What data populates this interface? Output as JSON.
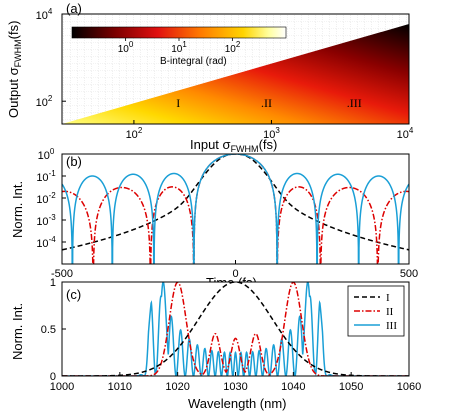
{
  "colors": {
    "series_I": "#000000",
    "series_II": "#dd0000",
    "series_III": "#1a9fd6",
    "colormap": [
      "#000000",
      "#7a0000",
      "#e01010",
      "#ff7a00",
      "#ffd400",
      "#ffffa0",
      "#ffffff"
    ]
  },
  "chart_data": [
    {
      "panel": "(a)",
      "type": "heatmap",
      "xlabel_main": "Input σ",
      "xlabel_sub": "FWHM",
      "xlabel_unit": "(fs)",
      "ylabel_main": "Output σ",
      "ylabel_sub": "FWHM",
      "ylabel_unit": "(fs)",
      "xscale": "log",
      "yscale": "log",
      "xlim": [
        30,
        10000
      ],
      "ylim": [
        30,
        10000
      ],
      "x_ticks": [
        {
          "base": "10",
          "exp": "2"
        },
        {
          "base": "10",
          "exp": "3"
        },
        {
          "base": "10",
          "exp": "4"
        }
      ],
      "y_ticks": [
        {
          "base": "10",
          "exp": "2"
        },
        {
          "base": "10",
          "exp": "4"
        }
      ],
      "colorbar": {
        "label": "B-integral (rad)",
        "scale": "log",
        "range": [
          0.1,
          1000
        ],
        "ticks": [
          {
            "base": "10",
            "exp": "0"
          },
          {
            "base": "10",
            "exp": "1"
          },
          {
            "base": "10",
            "exp": "2"
          }
        ],
        "location": "top-left inside"
      },
      "annotations": [
        {
          "text": "I",
          "x": 210,
          "y": 90
        },
        {
          "text": ".II",
          "x": 920,
          "y": 90
        },
        {
          "text": ".III",
          "x": 4000,
          "y": 90
        }
      ],
      "grid": true
    },
    {
      "panel": "(b)",
      "type": "line",
      "xlabel": "Time (fs)",
      "ylabel": "Norm. Int.",
      "yscale": "log",
      "xlim": [
        -500,
        500
      ],
      "ylim": [
        1e-05,
        1
      ],
      "x_ticks": [
        "-500",
        "0",
        "500"
      ],
      "y_ticks": [
        {
          "base": "10",
          "exp": "0"
        },
        {
          "base": "10",
          "exp": "-1"
        },
        {
          "base": "10",
          "exp": "-2"
        },
        {
          "base": "10",
          "exp": "-3"
        },
        {
          "base": "10",
          "exp": "-4"
        }
      ],
      "series": [
        {
          "name": "I",
          "style": "dashed",
          "fwhm_fs": 100
        },
        {
          "name": "II",
          "style": "dashdot",
          "nulls_fs": [
            120,
            245,
            410
          ]
        },
        {
          "name": "III",
          "style": "solid",
          "nulls_fs": [
            120,
            235,
            355,
            470
          ]
        }
      ]
    },
    {
      "panel": "(c)",
      "type": "line",
      "xlabel": "Wavelength (nm)",
      "ylabel": "Norm. Int.",
      "xlim": [
        1000,
        1060
      ],
      "ylim": [
        0,
        1
      ],
      "x_ticks": [
        "1000",
        "1010",
        "1020",
        "1030",
        "1040",
        "1050",
        "1060"
      ],
      "y_ticks": [
        "0",
        "0.5",
        "1"
      ],
      "legend": {
        "location": "top-right",
        "entries": [
          "I",
          "II",
          "III"
        ]
      },
      "series": [
        {
          "name": "I",
          "style": "dashed",
          "center_nm": 1030,
          "fwhm_nm": 15
        },
        {
          "name": "II",
          "style": "dashdot",
          "peaks_nm": [
            1020,
            1026.5,
            1030,
            1033.5,
            1040
          ],
          "peak_values": [
            1.0,
            0.45,
            0.4,
            0.45,
            1.0
          ]
        },
        {
          "name": "III",
          "style": "solid",
          "peaks_nm": [
            1017.5,
            1042.5
          ],
          "extent_nm": [
            1015,
            1045
          ]
        }
      ]
    }
  ]
}
